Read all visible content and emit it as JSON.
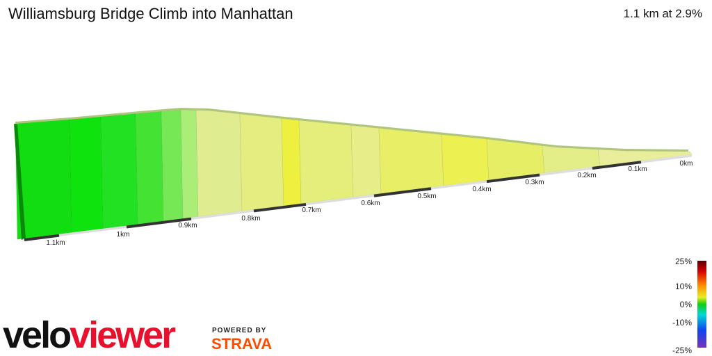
{
  "header": {
    "title": "Williamsburg Bridge Climb into Manhattan",
    "summary": "1.1 km at 2.9%"
  },
  "distance_labels": [
    "1.1km",
    "1km",
    "0.9km",
    "0.8km",
    "0.7km",
    "0.6km",
    "0.5km",
    "0.4km",
    "0.3km",
    "0.2km",
    "0.1km",
    "0km"
  ],
  "gradient_legend": [
    "25%",
    "10%",
    "0%",
    "-10%",
    "-25%"
  ],
  "logo": {
    "velo": "velo",
    "viewer": "viewer",
    "powered_by": "POWERED BY",
    "strava": "STRAVA"
  }
}
